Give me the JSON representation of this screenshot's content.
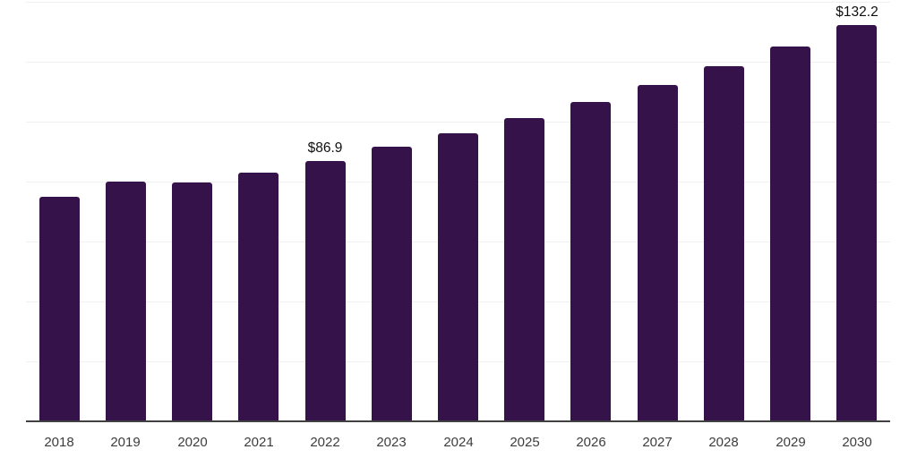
{
  "chart_data": {
    "type": "bar",
    "title": "",
    "xlabel": "",
    "ylabel": "",
    "categories": [
      "2018",
      "2019",
      "2020",
      "2021",
      "2022",
      "2023",
      "2024",
      "2025",
      "2026",
      "2027",
      "2028",
      "2029",
      "2030"
    ],
    "values": [
      74.9,
      80.0,
      79.7,
      83.0,
      86.9,
      91.6,
      96.1,
      101.2,
      106.6,
      112.2,
      118.5,
      125.1,
      132.2
    ],
    "annotations": [
      {
        "category": "2022",
        "label": "$86.9"
      },
      {
        "category": "2030",
        "label": "$132.2"
      }
    ],
    "ylim": [
      0,
      140
    ],
    "grid": true,
    "grid_step": 20,
    "legend": false,
    "colors": {
      "bar": "#35124A",
      "gridline": "#f0f0f0",
      "axis_line": "#414141",
      "tick_label": "#3d3d3d",
      "annotation": "#0f0f0f",
      "background": "#ffffff"
    }
  }
}
